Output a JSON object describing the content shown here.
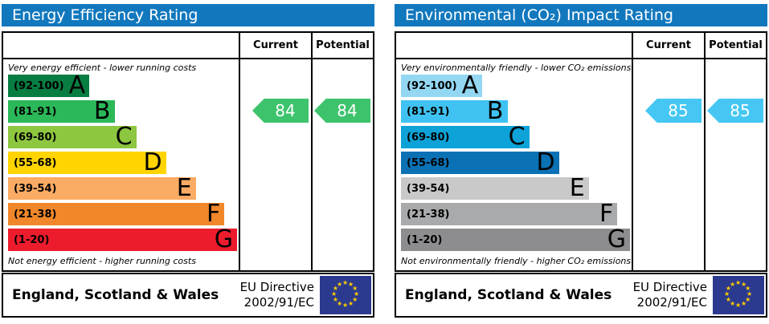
{
  "chart_data": [
    {
      "type": "bar",
      "title": "Energy Efficiency Rating",
      "columns": [
        "Current",
        "Potential"
      ],
      "top_caption": "Very energy efficient - lower running costs",
      "bottom_caption": "Not energy efficient - higher running costs",
      "scale_range": [
        1,
        100
      ],
      "bands": [
        {
          "letter": "A",
          "range_label": "(92-100)",
          "min": 92,
          "max": 100,
          "color": "#077d41",
          "width_pct": 35.5
        },
        {
          "letter": "B",
          "range_label": "(81-91)",
          "min": 81,
          "max": 91,
          "color": "#2bb858",
          "width_pct": 46.5
        },
        {
          "letter": "C",
          "range_label": "(69-80)",
          "min": 69,
          "max": 80,
          "color": "#8dc63f",
          "width_pct": 56
        },
        {
          "letter": "D",
          "range_label": "(55-68)",
          "min": 55,
          "max": 68,
          "color": "#ffd400",
          "width_pct": 69
        },
        {
          "letter": "E",
          "range_label": "(39-54)",
          "min": 39,
          "max": 54,
          "color": "#fbab64",
          "width_pct": 82
        },
        {
          "letter": "F",
          "range_label": "(21-38)",
          "min": 21,
          "max": 38,
          "color": "#f1872b",
          "width_pct": 94.5
        },
        {
          "letter": "G",
          "range_label": "(1-20)",
          "min": 1,
          "max": 20,
          "color": "#ed1c2c",
          "width_pct": 100
        }
      ],
      "current": {
        "value": 84,
        "band": "B",
        "color": "#3dc36c"
      },
      "potential": {
        "value": 84,
        "band": "B",
        "color": "#3dc36c"
      },
      "footer": {
        "region": "England, Scotland & Wales",
        "directive": [
          "EU Directive",
          "2002/91/EC"
        ],
        "eu_flag_stars": 12,
        "eu_flag_blue": "#2b3a8e",
        "eu_star_color": "#ffcc00"
      },
      "header_color": "#1278be"
    },
    {
      "type": "bar",
      "title": "Environmental (CO₂) Impact Rating",
      "columns": [
        "Current",
        "Potential"
      ],
      "top_caption": "Very environmentally friendly - lower CO₂ emissions",
      "bottom_caption": "Not environmentally friendly - higher CO₂ emissions",
      "scale_range": [
        1,
        100
      ],
      "bands": [
        {
          "letter": "A",
          "range_label": "(92-100)",
          "min": 92,
          "max": 100,
          "color": "#93d7f3",
          "width_pct": 35.5
        },
        {
          "letter": "B",
          "range_label": "(81-91)",
          "min": 81,
          "max": 91,
          "color": "#3fc2f1",
          "width_pct": 46.5
        },
        {
          "letter": "C",
          "range_label": "(69-80)",
          "min": 69,
          "max": 80,
          "color": "#0da2d8",
          "width_pct": 56
        },
        {
          "letter": "D",
          "range_label": "(55-68)",
          "min": 55,
          "max": 68,
          "color": "#0b71b5",
          "width_pct": 69
        },
        {
          "letter": "E",
          "range_label": "(39-54)",
          "min": 39,
          "max": 54,
          "color": "#c9c9c9",
          "width_pct": 82
        },
        {
          "letter": "F",
          "range_label": "(21-38)",
          "min": 21,
          "max": 38,
          "color": "#a9aaab",
          "width_pct": 94.5
        },
        {
          "letter": "G",
          "range_label": "(1-20)",
          "min": 1,
          "max": 20,
          "color": "#8d8d8f",
          "width_pct": 100
        }
      ],
      "current": {
        "value": 85,
        "band": "B",
        "color": "#46c7f3"
      },
      "potential": {
        "value": 85,
        "band": "B",
        "color": "#46c7f3"
      },
      "footer": {
        "region": "England, Scotland & Wales",
        "directive": [
          "EU Directive",
          "2002/91/EC"
        ],
        "eu_flag_stars": 12,
        "eu_flag_blue": "#2b3a8e",
        "eu_star_color": "#ffcc00"
      },
      "header_color": "#1278be"
    }
  ]
}
